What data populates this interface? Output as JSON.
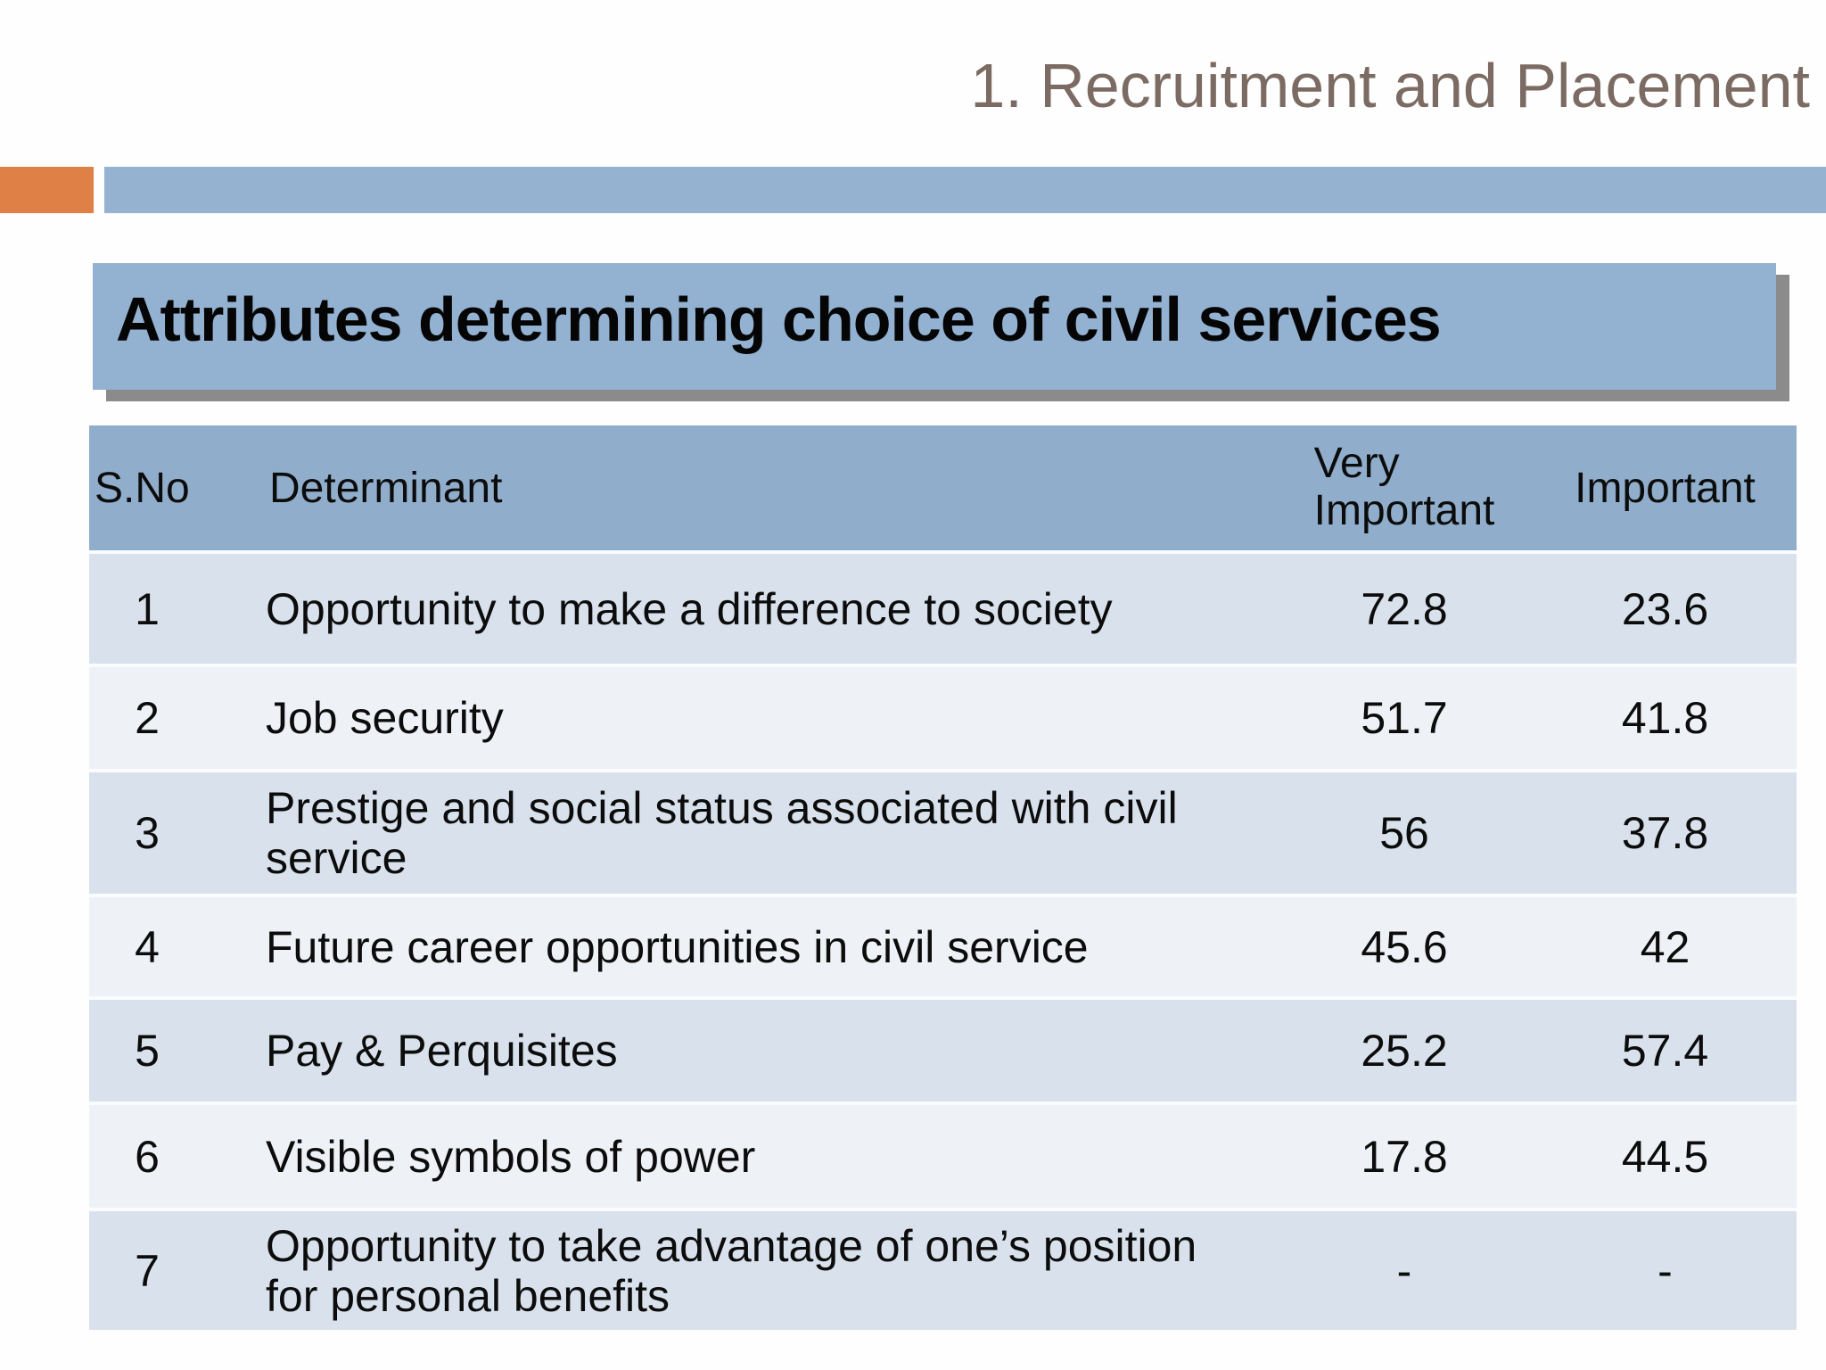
{
  "slide": {
    "title": "1. Recruitment and Placement",
    "heading": "Attributes determining choice of civil services"
  },
  "table": {
    "columns": [
      "S.No",
      "Determinant",
      "Very Important",
      "Important"
    ],
    "rows": [
      {
        "s_no": "1",
        "determinant": "Opportunity to make a difference to society",
        "very_important": "72.8",
        "important": "23.6"
      },
      {
        "s_no": "2",
        "determinant": "Job security",
        "very_important": "51.7",
        "important": "41.8"
      },
      {
        "s_no": "3",
        "determinant": "Prestige and social status associated with civil service",
        "very_important": "56",
        "important": "37.8"
      },
      {
        "s_no": "4",
        "determinant": "Future career opportunities in civil service",
        "very_important": "45.6",
        "important": "42"
      },
      {
        "s_no": "5",
        "determinant": "Pay & Perquisites",
        "very_important": "25.2",
        "important": "57.4"
      },
      {
        "s_no": "6",
        "determinant": "Visible symbols of power",
        "very_important": "17.8",
        "important": "44.5"
      },
      {
        "s_no": "7",
        "determinant": "Opportunity to take advantage  of one’s position for personal benefits",
        "very_important": "-",
        "important": "-"
      }
    ]
  },
  "colors": {
    "accent_orange": "#df8146",
    "accent_blue": "#95b3d1",
    "heading_box_blue": "#93b1d1",
    "table_header_blue": "#90aecb",
    "row_dark": "#d9e2ec",
    "row_light": "#eef1f6",
    "shadow_gray": "#8b8b8b",
    "title_brown": "#7b6b62"
  }
}
